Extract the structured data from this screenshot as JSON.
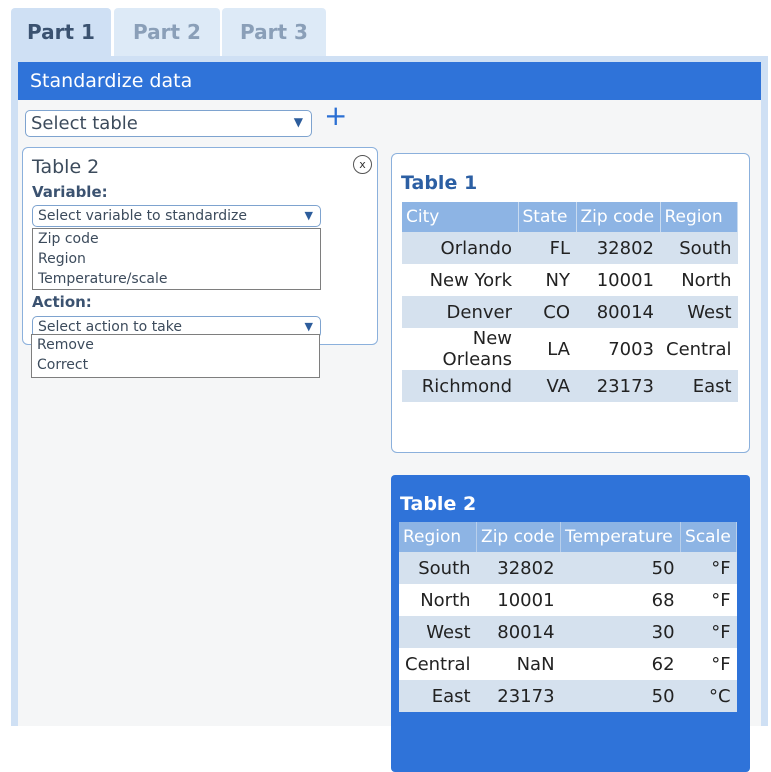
{
  "tabs": [
    "Part 1",
    "Part 2",
    "Part 3"
  ],
  "header": {
    "title": "Standardize data"
  },
  "select_table": {
    "placeholder": "Select table"
  },
  "card": {
    "title": "Table 2",
    "close_label": "x",
    "variable_label": "Variable:",
    "variable_placeholder": "Select variable to standardize",
    "variable_options": [
      "Zip code",
      "Region",
      "Temperature/scale"
    ],
    "action_label": "Action:",
    "action_placeholder": "Select action to take",
    "action_options": [
      "Remove",
      "Correct"
    ]
  },
  "table1": {
    "title": "Table 1",
    "columns": [
      "City",
      "State",
      "Zip code",
      "Region"
    ],
    "rows": [
      [
        "Orlando",
        "FL",
        "32802",
        "South"
      ],
      [
        "New York",
        "NY",
        "10001",
        "North"
      ],
      [
        "Denver",
        "CO",
        "80014",
        "West"
      ],
      [
        "New Orleans",
        "LA",
        "7003",
        "Central"
      ],
      [
        "Richmond",
        "VA",
        "23173",
        "East"
      ]
    ]
  },
  "table2": {
    "title": "Table 2",
    "columns": [
      "Region",
      "Zip code",
      "Temperature",
      "Scale"
    ],
    "rows": [
      [
        "South",
        "32802",
        "50",
        "°F"
      ],
      [
        "North",
        "10001",
        "68",
        "°F"
      ],
      [
        "West",
        "80014",
        "30",
        "°F"
      ],
      [
        "Central",
        "NaN",
        "62",
        "°F"
      ],
      [
        "East",
        "23173",
        "50",
        "°C"
      ]
    ]
  },
  "colors": {
    "accent": "#2f73d9",
    "tab_bg": "#cfe0f4",
    "table_header": "#8db4e4"
  },
  "icons": [
    "chevron-down-icon",
    "plus-icon",
    "close-icon"
  ]
}
